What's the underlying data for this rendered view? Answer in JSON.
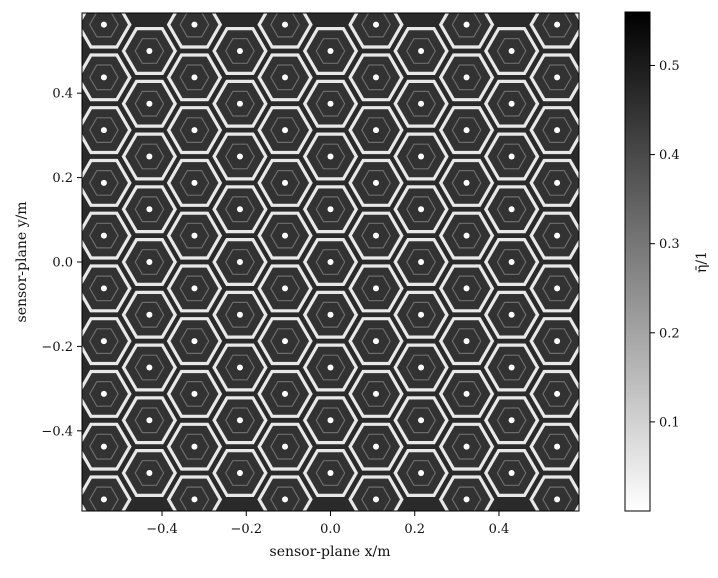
{
  "chart_data": {
    "type": "heatmap",
    "subtype": "hexagonal-cell-map",
    "xlabel": "sensor-plane x/m",
    "ylabel": "sensor-plane y/m",
    "xlim": [
      -0.59,
      0.59
    ],
    "ylim": [
      -0.59,
      0.59
    ],
    "xticks": [
      -0.4,
      -0.2,
      0.0,
      0.2,
      0.4
    ],
    "xtick_labels": [
      "−0.4",
      "−0.2",
      "0.0",
      "0.2",
      "0.4"
    ],
    "yticks": [
      -0.4,
      -0.2,
      0.0,
      0.2,
      0.4
    ],
    "ytick_labels": [
      "−0.4",
      "−0.2",
      "0.0",
      "0.2",
      "0.4"
    ],
    "grid": false,
    "colorbar": {
      "label": "η̄/1",
      "range": [
        0.0,
        0.56
      ],
      "ticks": [
        0.1,
        0.2,
        0.3,
        0.4,
        0.5
      ],
      "tick_labels": [
        "0.1",
        "0.2",
        "0.3",
        "0.4",
        "0.5"
      ],
      "colormap": "gray_r"
    },
    "pattern": {
      "description": "repeating hexagonal lens-cell pattern; each cell has a bright center pixel, a dark body and bright hexagonal borders",
      "cell_pitch_x": 0.1075,
      "cell_pitch_y": 0.0625,
      "cell_centers_x": [
        -0.538,
        -0.43,
        -0.323,
        -0.215,
        -0.108,
        0.0,
        0.108,
        0.215,
        0.323,
        0.43,
        0.538
      ],
      "cell_center_rows_y": [
        -0.5625,
        -0.5,
        -0.4375,
        -0.375,
        -0.3125,
        -0.25,
        -0.1875,
        -0.125,
        -0.0625,
        0.0,
        0.0625,
        0.125,
        0.1875,
        0.25,
        0.3125,
        0.375,
        0.4375,
        0.5,
        0.5625
      ],
      "center_value": 0.0,
      "body_value": 0.45,
      "border_value": 0.05
    }
  }
}
